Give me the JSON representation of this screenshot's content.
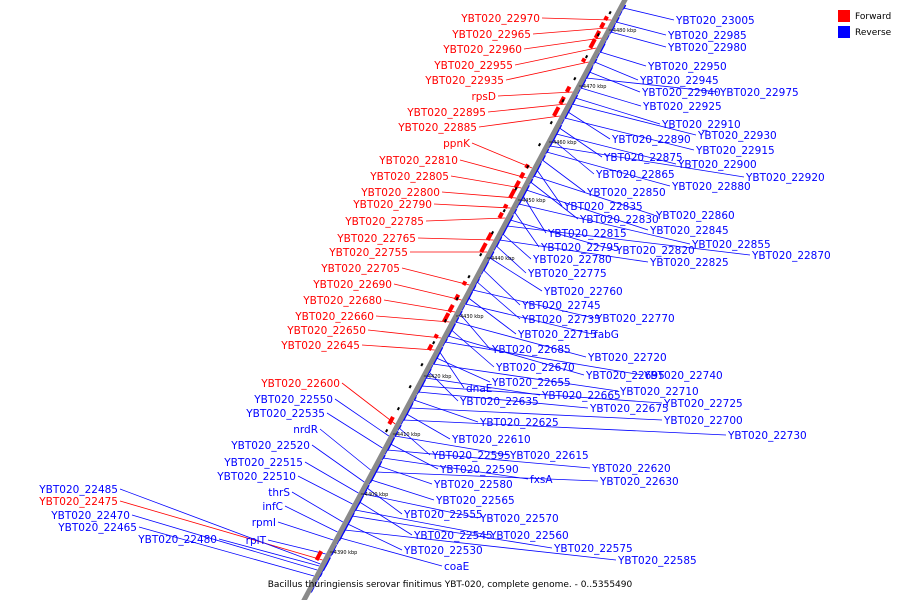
{
  "caption": "Bacillus thuringiensis serovar finitimus YBT-020, complete genome. - 0..5355490",
  "legend": [
    {
      "label": "Forward",
      "color": "#ff0000"
    },
    {
      "label": "Reverse",
      "color": "#0000ff"
    }
  ],
  "ticks": [
    "4390 kbp",
    "4400 kbp",
    "4410 kbp",
    "4420 kbp",
    "4430 kbp",
    "4440 kbp",
    "4450 kbp",
    "4460 kbp",
    "4470 kbp",
    "4480 kbp"
  ],
  "forward_labels": [
    "YBT020_22970",
    "YBT020_22965",
    "YBT020_22960",
    "YBT020_22955",
    "YBT020_22935",
    "rpsD",
    "YBT020_22895",
    "YBT020_22885",
    "ppnK",
    "YBT020_22810",
    "YBT020_22805",
    "YBT020_22800",
    "YBT020_22790",
    "YBT020_22785",
    "YBT020_22765",
    "YBT020_22755",
    "YBT020_22705",
    "YBT020_22690",
    "YBT020_22680",
    "YBT020_22660",
    "YBT020_22650",
    "YBT020_22645",
    "YBT020_22600",
    "YBT020_22475"
  ],
  "reverse_left_labels": [
    "YBT020_22550",
    "YBT020_22535",
    "nrdR",
    "YBT020_22520",
    "YBT020_22515",
    "YBT020_22510",
    "thrS",
    "infC",
    "rpmI",
    "rplT",
    "YBT020_22485",
    "YBT020_22470",
    "YBT020_22465",
    "YBT020_22480"
  ],
  "reverse_right_labels": [
    "YBT020_23005",
    "YBT020_22985",
    "YBT020_22980",
    "YBT020_22950",
    "YBT020_22945",
    "YBT020_22940",
    "YBT020_22975",
    "YBT020_22925",
    "YBT020_22910",
    "YBT020_22930",
    "YBT020_22890",
    "YBT020_22915",
    "YBT020_22875",
    "YBT020_22900",
    "YBT020_22865",
    "YBT020_22920",
    "YBT020_22880",
    "YBT020_22850",
    "YBT020_22835",
    "YBT020_22860",
    "YBT020_22830",
    "YBT020_22845",
    "YBT020_22815",
    "YBT020_22855",
    "YBT020_22795",
    "YBT020_22820",
    "YBT020_22870",
    "YBT020_22780",
    "YBT020_22825",
    "YBT020_22775",
    "YBT020_22760",
    "YBT020_22745",
    "YBT020_22735",
    "YBT020_22770",
    "YBT020_22715",
    "fabG",
    "YBT020_22685",
    "YBT020_22720",
    "YBT020_22670",
    "YBT020_22695",
    "YBT020_22740",
    "dnaE",
    "YBT020_22655",
    "YBT020_22710",
    "YBT020_22635",
    "YBT020_22665",
    "YBT020_22725",
    "YBT020_22675",
    "YBT020_22625",
    "YBT020_22700",
    "YBT020_22610",
    "YBT020_22730",
    "YBT020_22595",
    "YBT020_22615",
    "YBT020_22590",
    "YBT020_22620",
    "fxsA",
    "YBT020_22580",
    "YBT020_22630",
    "YBT020_22565",
    "YBT020_22555",
    "YBT020_22570",
    "YBT020_22545",
    "YBT020_22560",
    "YBT020_22575",
    "YBT020_22530",
    "YBT020_22585",
    "coaE"
  ]
}
